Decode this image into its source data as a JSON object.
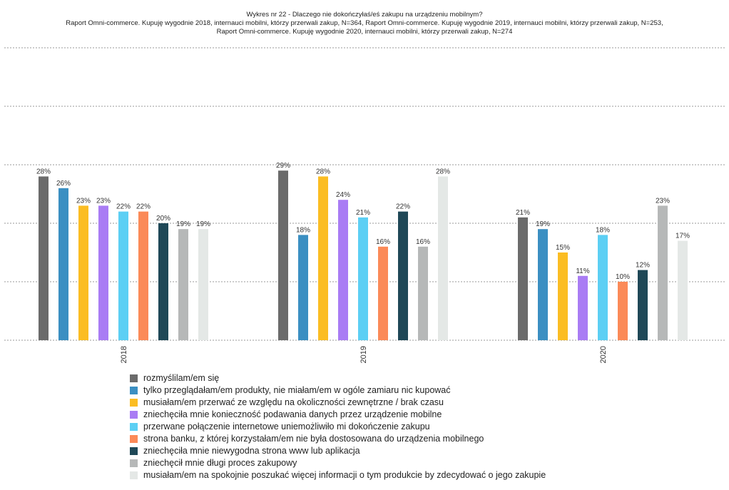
{
  "chart_data": {
    "type": "bar",
    "title": "Wykres nr 22 - Dlaczego nie dokończyłaś/eś zakupu na urządzeniu mobilnym?",
    "subtitle": [
      "Raport Omni-commerce. Kupuję wygodnie 2018, internauci mobilni, którzy przerwali zakup, N=364, Raport Omni-commerce. Kupuję wygodnie 2019, internauci mobilni, którzy przerwali zakup, N=253,",
      "Raport Omni-commerce. Kupuję wygodnie 2020, internauci mobilni, którzy przerwali zakup, N=274"
    ],
    "categories": [
      "2018",
      "2019",
      "2020"
    ],
    "ylim": [
      0,
      50
    ],
    "grid": true,
    "legend_placement": "bottom",
    "series": [
      {
        "name": "rozmyślilam/em się",
        "color": "#6b6b6b",
        "values": [
          28,
          29,
          21
        ]
      },
      {
        "name": "tylko przeglądałam/em produkty, nie miałam/em w ogóle zamiaru nic kupować",
        "color": "#3b8fc2",
        "values": [
          26,
          18,
          19
        ]
      },
      {
        "name": "musiałam/em przerwać ze względu na okoliczności zewnętrzne / brak czasu",
        "color": "#fbbd23",
        "values": [
          23,
          28,
          15
        ]
      },
      {
        "name": "zniechęciła mnie konieczność podawania danych przez urządzenie mobilne",
        "color": "#a97cf4",
        "values": [
          23,
          24,
          11
        ]
      },
      {
        "name": "przerwane połączenie internetowe uniemożliwiło mi dokończenie zakupu",
        "color": "#5ccff4",
        "values": [
          22,
          21,
          18
        ]
      },
      {
        "name": "strona banku, z której korzystałam/em nie była dostosowana do urządzenia mobilnego",
        "color": "#fb8a58",
        "values": [
          22,
          16,
          10
        ]
      },
      {
        "name": "zniechęciła mnie niewygodna strona www lub aplikacja",
        "color": "#1f4857",
        "values": [
          20,
          22,
          12
        ]
      },
      {
        "name": "zniechęcił mnie długi proces zakupowy",
        "color": "#b6b8b8",
        "values": [
          19,
          16,
          23
        ]
      },
      {
        "name": "musiałam/em na spokojnie poszukać więcej informacji o tym produkcie by zdecydować o jego zakupie",
        "color": "#e4e8e6",
        "values": [
          19,
          28,
          17
        ]
      }
    ]
  }
}
